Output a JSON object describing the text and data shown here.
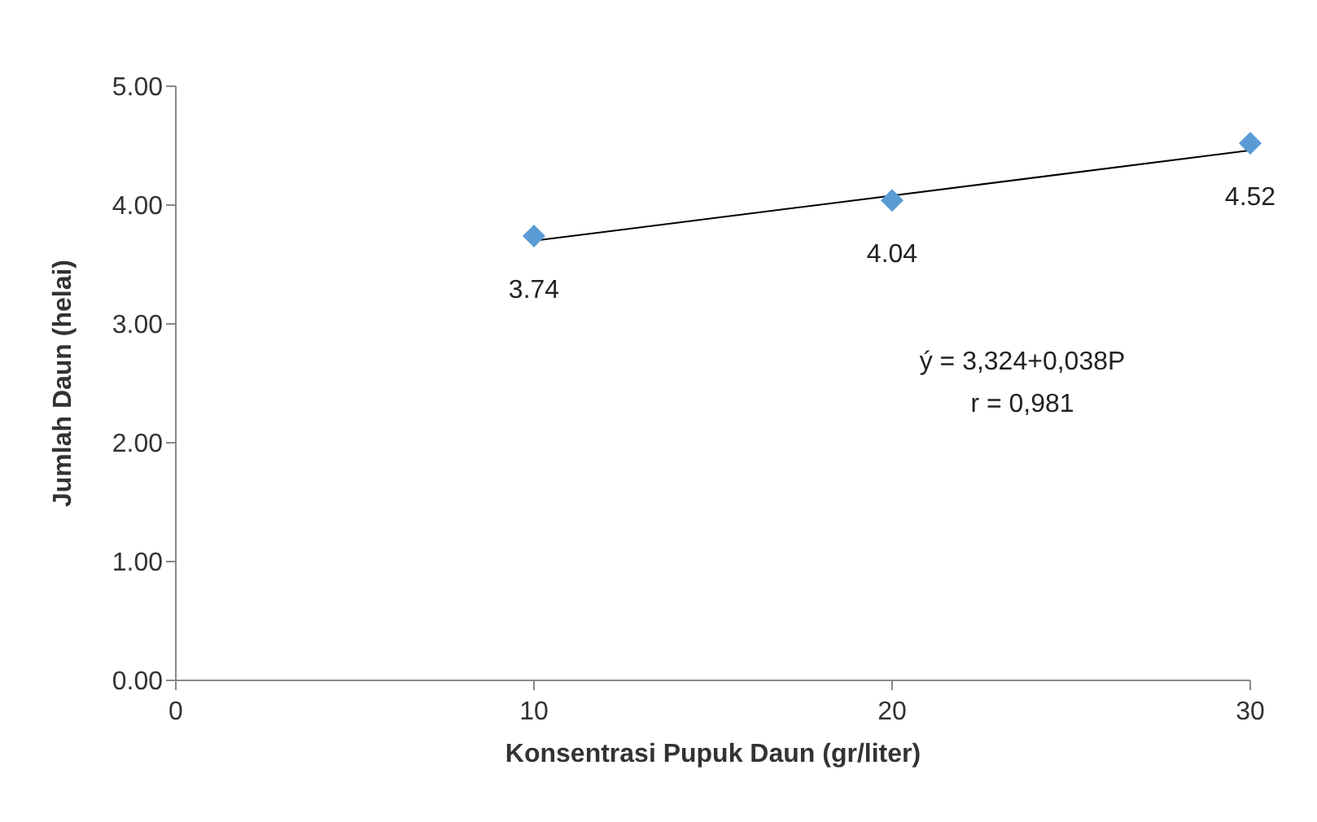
{
  "chart_data": {
    "type": "scatter",
    "xlabel": "Konsentrasi Pupuk Daun (gr/liter)",
    "ylabel": "Jumlah Daun (helai)",
    "series": [
      {
        "color": "#5b9bd5",
        "x": [
          10,
          20,
          30
        ],
        "values": [
          3.74,
          4.04,
          4.52
        ],
        "marker": "diamond",
        "value_labels": [
          "3.74",
          "4.04",
          "4.52"
        ]
      },
      {
        "type": "line",
        "color": "#000000",
        "x": [
          10,
          30
        ],
        "values": [
          3.7,
          4.46
        ],
        "marker": "none",
        "line_style": "solid"
      }
    ],
    "annotations": [
      "ý = 3,324+0,038P",
      "r = 0,981"
    ],
    "xlim": [
      0,
      30
    ],
    "xticks": [
      0,
      10,
      20,
      30
    ],
    "ylim": [
      0,
      5
    ],
    "yticks": [
      {
        "value": 0,
        "label": "0.00"
      },
      {
        "value": 1,
        "label": "1.00"
      },
      {
        "value": 2,
        "label": "2.00"
      },
      {
        "value": 3,
        "label": "3.00"
      },
      {
        "value": 4,
        "label": "4.00"
      },
      {
        "value": 5,
        "label": "5.00"
      }
    ],
    "grid": false,
    "legend": false
  }
}
